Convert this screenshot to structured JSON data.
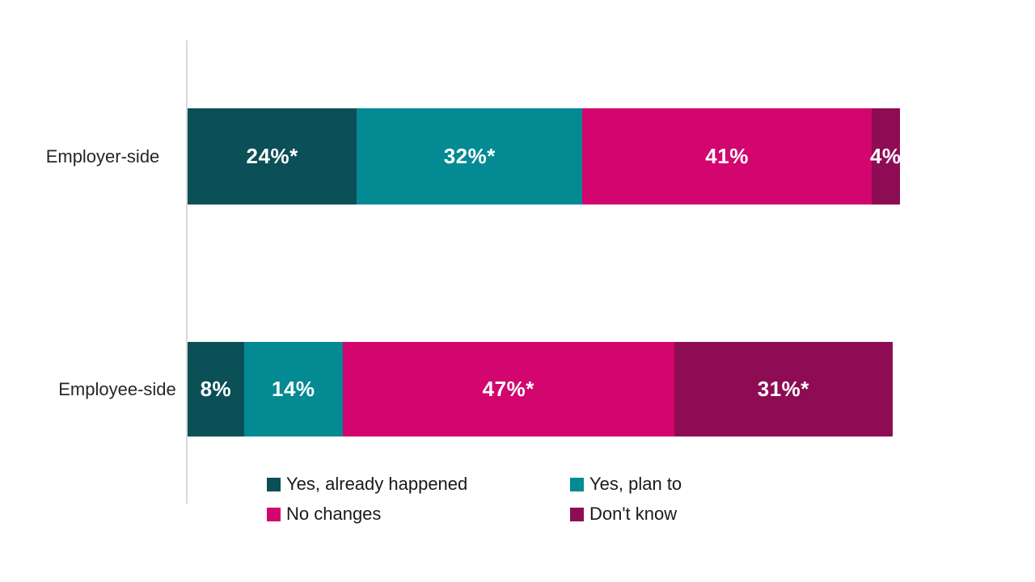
{
  "chart_data": {
    "type": "bar",
    "variant": "horizontal-stacked",
    "title": "",
    "xlabel": "",
    "ylabel": "",
    "xlim": [
      0,
      100
    ],
    "grid": false,
    "legend_position": "bottom",
    "categories": [
      "Employer-side",
      "Employee-side"
    ],
    "series": [
      {
        "name": "Yes, already happened",
        "color": "#0b4f57",
        "values": [
          24,
          8
        ],
        "labels": [
          "24%*",
          "8%"
        ]
      },
      {
        "name": "Yes, plan to",
        "color": "#038a93",
        "values": [
          32,
          14
        ],
        "labels": [
          "32%*",
          "14%"
        ]
      },
      {
        "name": "No changes",
        "color": "#d2066e",
        "values": [
          41,
          47
        ],
        "labels": [
          "41%",
          "47%*"
        ]
      },
      {
        "name": "Don't know",
        "color": "#8e0c54",
        "values": [
          4,
          31
        ],
        "labels": [
          "4%",
          "31%*"
        ]
      }
    ]
  },
  "colors": {
    "axis_line": "#d9d9d9",
    "data_label": "#ffffff",
    "category_label": "#262626",
    "legend_label": "#1a1a1a",
    "background": "#ffffff"
  }
}
